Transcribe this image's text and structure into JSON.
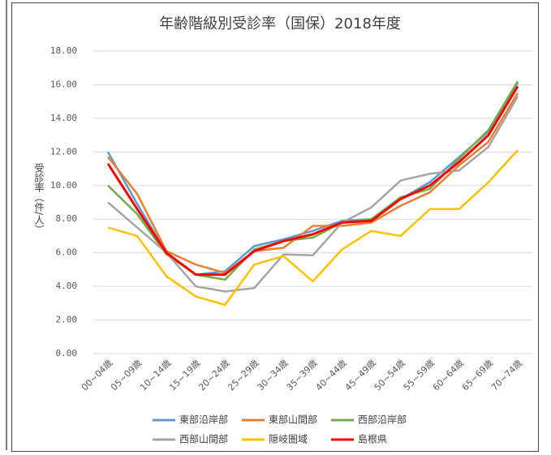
{
  "chart_data": {
    "type": "line",
    "title": "年齢階級別受診率（国保）2018年度",
    "y_label": "受診率（件/人）",
    "categories": [
      "00~04歳",
      "05~09歳",
      "10~14歳",
      "15~19歳",
      "20~24歳",
      "25~29歳",
      "30~34歳",
      "35~39歳",
      "40~44歳",
      "45~49歳",
      "50~54歳",
      "55~59歳",
      "60~64歳",
      "65~69歳",
      "70~74歳"
    ],
    "series": [
      {
        "name": "東部沿岸部",
        "color": "#5b9bd5",
        "values": [
          12.0,
          8.9,
          6.0,
          4.7,
          4.9,
          6.4,
          6.8,
          7.3,
          7.9,
          8.0,
          9.2,
          10.2,
          11.7,
          13.2,
          16.1
        ]
      },
      {
        "name": "東部山間部",
        "color": "#ed7d31",
        "values": [
          11.7,
          9.5,
          6.1,
          5.3,
          4.8,
          6.1,
          6.3,
          7.6,
          7.6,
          7.8,
          8.8,
          9.6,
          11.2,
          12.6,
          15.5
        ]
      },
      {
        "name": "西部沿岸部",
        "color": "#70ad47",
        "values": [
          10.0,
          8.3,
          5.9,
          4.7,
          4.4,
          6.2,
          6.7,
          6.9,
          7.8,
          8.0,
          9.3,
          9.8,
          11.6,
          13.3,
          16.2
        ]
      },
      {
        "name": "西部山間部",
        "color": "#a5a5a5",
        "values": [
          9.0,
          7.5,
          6.0,
          4.0,
          3.7,
          3.9,
          5.9,
          5.85,
          7.8,
          8.7,
          10.3,
          10.7,
          10.9,
          12.3,
          15.3
        ]
      },
      {
        "name": "隠岐圏域",
        "color": "#ffc000",
        "values": [
          7.5,
          7.0,
          4.6,
          3.4,
          2.9,
          5.3,
          5.8,
          4.3,
          6.2,
          7.3,
          7.0,
          8.6,
          8.6,
          10.2,
          12.1
        ]
      },
      {
        "name": "島根県",
        "color": "#ff0000",
        "values": [
          11.3,
          8.6,
          6.0,
          4.7,
          4.7,
          6.1,
          6.7,
          7.1,
          7.8,
          7.9,
          9.2,
          10.0,
          11.4,
          13.0,
          15.9
        ]
      }
    ],
    "ylim": [
      0,
      18
    ],
    "yticks": [
      {
        "value": 0,
        "label": "0.00"
      },
      {
        "value": 2,
        "label": "2.00"
      },
      {
        "value": 4,
        "label": "4.00"
      },
      {
        "value": 6,
        "label": "6.00"
      },
      {
        "value": 8,
        "label": "8.00"
      },
      {
        "value": 10,
        "label": "10.00"
      },
      {
        "value": 12,
        "label": "12.00"
      },
      {
        "value": 14,
        "label": "14.00"
      },
      {
        "value": 16,
        "label": "16.00"
      },
      {
        "value": 18,
        "label": "18.00"
      }
    ],
    "grid": true,
    "legend": "bottom"
  }
}
